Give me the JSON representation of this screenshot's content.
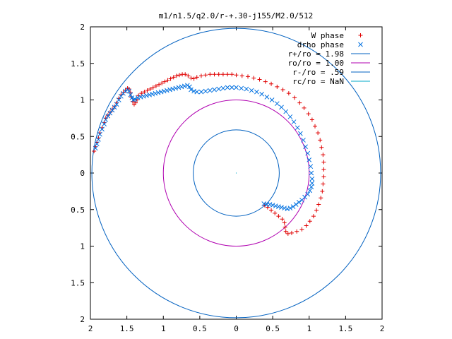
{
  "chart_data": {
    "type": "scatter",
    "title": "m1/n1.5/q2.0/r-+.30-j155/M2.0/512",
    "xlabel": "",
    "ylabel": "",
    "xlim": [
      -2,
      2
    ],
    "ylim": [
      -2,
      2
    ],
    "xtick_labels": [
      "2",
      "1.5",
      "1",
      "0.5",
      "0",
      "0.5",
      "1",
      "1.5",
      "2"
    ],
    "ytick_labels": [
      "2",
      "1.5",
      "1",
      "0.5",
      "0",
      "0.5",
      "1",
      "1.5",
      "2"
    ],
    "grid": false,
    "legend_position": "top-right",
    "series": [
      {
        "name": "W phase",
        "marker": "plus",
        "color": "#e00000",
        "points": [
          [
            -1.95,
            0.3
          ],
          [
            -1.93,
            0.36
          ],
          [
            -1.91,
            0.42
          ],
          [
            -1.89,
            0.48
          ],
          [
            -1.87,
            0.55
          ],
          [
            -1.84,
            0.62
          ],
          [
            -1.81,
            0.69
          ],
          [
            -1.79,
            0.75
          ],
          [
            -1.76,
            0.79
          ],
          [
            -1.73,
            0.83
          ],
          [
            -1.7,
            0.87
          ],
          [
            -1.67,
            0.91
          ],
          [
            -1.64,
            0.96
          ],
          [
            -1.61,
            1.02
          ],
          [
            -1.58,
            1.07
          ],
          [
            -1.55,
            1.1
          ],
          [
            -1.52,
            1.13
          ],
          [
            -1.49,
            1.16
          ],
          [
            -1.47,
            1.15
          ],
          [
            -1.45,
            1.1
          ],
          [
            -1.44,
            1.04
          ],
          [
            -1.42,
            0.98
          ],
          [
            -1.4,
            0.94
          ],
          [
            -1.38,
            0.96
          ],
          [
            -1.36,
            1.0
          ],
          [
            -1.34,
            1.06
          ],
          [
            -1.3,
            1.09
          ],
          [
            -1.26,
            1.11
          ],
          [
            -1.22,
            1.13
          ],
          [
            -1.18,
            1.15
          ],
          [
            -1.14,
            1.17
          ],
          [
            -1.1,
            1.19
          ],
          [
            -1.06,
            1.21
          ],
          [
            -1.02,
            1.23
          ],
          [
            -0.98,
            1.25
          ],
          [
            -0.94,
            1.27
          ],
          [
            -0.9,
            1.29
          ],
          [
            -0.86,
            1.31
          ],
          [
            -0.82,
            1.33
          ],
          [
            -0.78,
            1.34
          ],
          [
            -0.74,
            1.35
          ],
          [
            -0.7,
            1.35
          ],
          [
            -0.66,
            1.33
          ],
          [
            -0.62,
            1.3
          ],
          [
            -0.58,
            1.29
          ],
          [
            -0.54,
            1.31
          ],
          [
            -0.48,
            1.33
          ],
          [
            -0.42,
            1.34
          ],
          [
            -0.36,
            1.35
          ],
          [
            -0.3,
            1.35
          ],
          [
            -0.24,
            1.35
          ],
          [
            -0.18,
            1.35
          ],
          [
            -0.12,
            1.35
          ],
          [
            -0.06,
            1.35
          ],
          [
            0.0,
            1.34
          ],
          [
            0.08,
            1.33
          ],
          [
            0.16,
            1.32
          ],
          [
            0.24,
            1.3
          ],
          [
            0.32,
            1.28
          ],
          [
            0.4,
            1.25
          ],
          [
            0.48,
            1.22
          ],
          [
            0.56,
            1.18
          ],
          [
            0.64,
            1.14
          ],
          [
            0.72,
            1.09
          ],
          [
            0.8,
            1.03
          ],
          [
            0.87,
            0.96
          ],
          [
            0.93,
            0.89
          ],
          [
            0.99,
            0.81
          ],
          [
            1.04,
            0.73
          ],
          [
            1.08,
            0.64
          ],
          [
            1.12,
            0.55
          ],
          [
            1.15,
            0.45
          ],
          [
            1.17,
            0.35
          ],
          [
            1.19,
            0.25
          ],
          [
            1.2,
            0.15
          ],
          [
            1.2,
            0.05
          ],
          [
            1.2,
            -0.05
          ],
          [
            1.19,
            -0.15
          ],
          [
            1.18,
            -0.25
          ],
          [
            1.16,
            -0.34
          ],
          [
            1.13,
            -0.43
          ],
          [
            1.1,
            -0.51
          ],
          [
            1.06,
            -0.59
          ],
          [
            1.01,
            -0.66
          ],
          [
            0.96,
            -0.72
          ],
          [
            0.9,
            -0.77
          ],
          [
            0.83,
            -0.8
          ],
          [
            0.76,
            -0.82
          ],
          [
            0.71,
            -0.83
          ],
          [
            0.68,
            -0.8
          ],
          [
            0.67,
            -0.74
          ],
          [
            0.66,
            -0.68
          ],
          [
            0.63,
            -0.63
          ],
          [
            0.58,
            -0.59
          ],
          [
            0.53,
            -0.55
          ],
          [
            0.48,
            -0.51
          ],
          [
            0.43,
            -0.47
          ],
          [
            0.39,
            -0.44
          ]
        ]
      },
      {
        "name": "drho phase",
        "marker": "cross",
        "color": "#0070e0",
        "points": [
          [
            -1.93,
            0.34
          ],
          [
            -1.91,
            0.4
          ],
          [
            -1.89,
            0.46
          ],
          [
            -1.87,
            0.53
          ],
          [
            -1.84,
            0.6
          ],
          [
            -1.81,
            0.67
          ],
          [
            -1.79,
            0.73
          ],
          [
            -1.76,
            0.78
          ],
          [
            -1.73,
            0.82
          ],
          [
            -1.7,
            0.86
          ],
          [
            -1.67,
            0.9
          ],
          [
            -1.64,
            0.94
          ],
          [
            -1.61,
            1.0
          ],
          [
            -1.58,
            1.05
          ],
          [
            -1.55,
            1.09
          ],
          [
            -1.52,
            1.12
          ],
          [
            -1.49,
            1.14
          ],
          [
            -1.47,
            1.12
          ],
          [
            -1.45,
            1.07
          ],
          [
            -1.43,
            1.03
          ],
          [
            -1.41,
            1.0
          ],
          [
            -1.39,
            1.01
          ],
          [
            -1.35,
            1.03
          ],
          [
            -1.31,
            1.04
          ],
          [
            -1.27,
            1.05
          ],
          [
            -1.23,
            1.06
          ],
          [
            -1.19,
            1.07
          ],
          [
            -1.15,
            1.08
          ],
          [
            -1.11,
            1.09
          ],
          [
            -1.07,
            1.1
          ],
          [
            -1.03,
            1.11
          ],
          [
            -0.99,
            1.12
          ],
          [
            -0.95,
            1.13
          ],
          [
            -0.91,
            1.14
          ],
          [
            -0.87,
            1.15
          ],
          [
            -0.83,
            1.16
          ],
          [
            -0.79,
            1.17
          ],
          [
            -0.75,
            1.18
          ],
          [
            -0.71,
            1.19
          ],
          [
            -0.67,
            1.2
          ],
          [
            -0.64,
            1.18
          ],
          [
            -0.62,
            1.14
          ],
          [
            -0.58,
            1.12
          ],
          [
            -0.54,
            1.11
          ],
          [
            -0.48,
            1.11
          ],
          [
            -0.42,
            1.12
          ],
          [
            -0.36,
            1.13
          ],
          [
            -0.3,
            1.14
          ],
          [
            -0.24,
            1.15
          ],
          [
            -0.18,
            1.16
          ],
          [
            -0.12,
            1.17
          ],
          [
            -0.06,
            1.17
          ],
          [
            0.0,
            1.17
          ],
          [
            0.07,
            1.16
          ],
          [
            0.14,
            1.15
          ],
          [
            0.21,
            1.13
          ],
          [
            0.28,
            1.11
          ],
          [
            0.35,
            1.08
          ],
          [
            0.42,
            1.04
          ],
          [
            0.49,
            1.0
          ],
          [
            0.56,
            0.95
          ],
          [
            0.62,
            0.9
          ],
          [
            0.68,
            0.84
          ],
          [
            0.74,
            0.77
          ],
          [
            0.79,
            0.7
          ],
          [
            0.84,
            0.62
          ],
          [
            0.88,
            0.54
          ],
          [
            0.92,
            0.45
          ],
          [
            0.95,
            0.36
          ],
          [
            0.98,
            0.27
          ],
          [
            1.0,
            0.18
          ],
          [
            1.02,
            0.09
          ],
          [
            1.03,
            0.0
          ],
          [
            1.04,
            -0.08
          ],
          [
            1.04,
            -0.14
          ],
          [
            1.03,
            -0.19
          ],
          [
            1.01,
            -0.24
          ],
          [
            0.98,
            -0.29
          ],
          [
            0.94,
            -0.33
          ],
          [
            0.9,
            -0.37
          ],
          [
            0.86,
            -0.4
          ],
          [
            0.82,
            -0.43
          ],
          [
            0.78,
            -0.46
          ],
          [
            0.74,
            -0.48
          ],
          [
            0.7,
            -0.49
          ],
          [
            0.66,
            -0.48
          ],
          [
            0.62,
            -0.47
          ],
          [
            0.58,
            -0.46
          ],
          [
            0.54,
            -0.45
          ],
          [
            0.5,
            -0.44
          ],
          [
            0.46,
            -0.43
          ],
          [
            0.42,
            -0.43
          ],
          [
            0.38,
            -0.42
          ]
        ]
      },
      {
        "name": "r+/ro = 1.98",
        "type": "circle",
        "radius": 1.98,
        "color": "#0060c0"
      },
      {
        "name": "ro/ro = 1.00",
        "type": "circle",
        "radius": 1.0,
        "color": "#b000b0"
      },
      {
        "name": "r-/ro = .59",
        "type": "circle",
        "radius": 0.59,
        "color": "#0060c0"
      },
      {
        "name": "rc/ro = NaN",
        "type": "circle",
        "radius": null,
        "color": "#00a8c8"
      }
    ]
  }
}
